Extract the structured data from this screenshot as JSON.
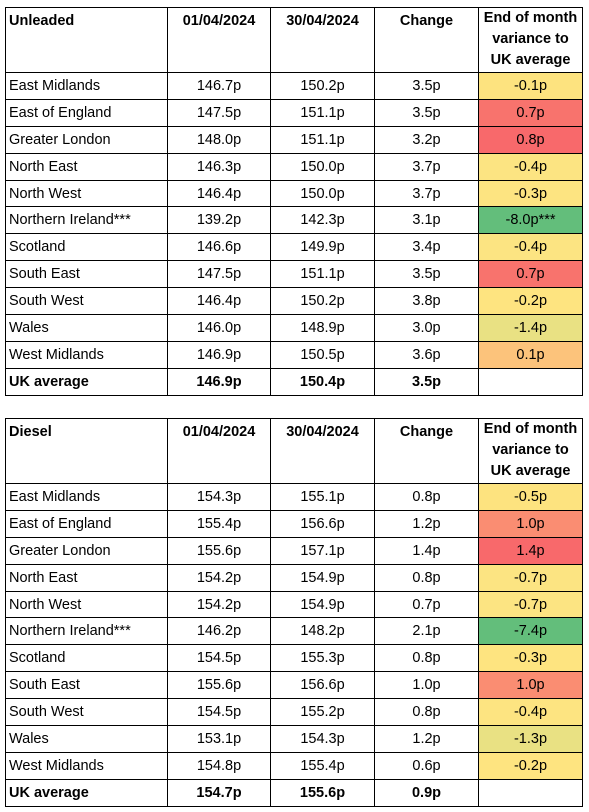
{
  "unleaded": {
    "headers": [
      "Unleaded",
      "01/04/2024",
      "30/04/2024",
      "Change",
      "End of month variance to UK average"
    ],
    "rows": [
      {
        "region": "East Midlands",
        "start": "146.7p",
        "end": "150.2p",
        "change": "3.5p",
        "variance": "-0.1p",
        "color": "#fde37f"
      },
      {
        "region": "East of England",
        "start": "147.5p",
        "end": "151.1p",
        "change": "3.5p",
        "variance": "0.7p",
        "color": "#f8736d"
      },
      {
        "region": "Greater London",
        "start": "148.0p",
        "end": "151.1p",
        "change": "3.2p",
        "variance": "0.8p",
        "color": "#f8696b"
      },
      {
        "region": "North East",
        "start": "146.3p",
        "end": "150.0p",
        "change": "3.7p",
        "variance": "-0.4p",
        "color": "#fce482"
      },
      {
        "region": "North West",
        "start": "146.4p",
        "end": "150.0p",
        "change": "3.7p",
        "variance": "-0.3p",
        "color": "#fde481"
      },
      {
        "region": "Northern Ireland***",
        "start": "139.2p",
        "end": "142.3p",
        "change": "3.1p",
        "variance": "-8.0p***",
        "color": "#63be7b"
      },
      {
        "region": "Scotland",
        "start": "146.6p",
        "end": "149.9p",
        "change": "3.4p",
        "variance": "-0.4p",
        "color": "#fce482"
      },
      {
        "region": "South East",
        "start": "147.5p",
        "end": "151.1p",
        "change": "3.5p",
        "variance": "0.7p",
        "color": "#f8736d"
      },
      {
        "region": "South West",
        "start": "146.4p",
        "end": "150.2p",
        "change": "3.8p",
        "variance": "-0.2p",
        "color": "#fee480"
      },
      {
        "region": "Wales",
        "start": "146.0p",
        "end": "148.9p",
        "change": "3.0p",
        "variance": "-1.4p",
        "color": "#e9e183"
      },
      {
        "region": "West Midlands",
        "start": "146.9p",
        "end": "150.5p",
        "change": "3.6p",
        "variance": "0.1p",
        "color": "#fcc37b"
      }
    ],
    "average": {
      "region": "UK average",
      "start": "146.9p",
      "end": "150.4p",
      "change": "3.5p",
      "variance": ""
    }
  },
  "diesel": {
    "headers": [
      "Diesel",
      "01/04/2024",
      "30/04/2024",
      "Change",
      "End of month variance to UK average"
    ],
    "rows": [
      {
        "region": "East Midlands",
        "start": "154.3p",
        "end": "155.1p",
        "change": "0.8p",
        "variance": "-0.5p",
        "color": "#fde37f"
      },
      {
        "region": "East of England",
        "start": "155.4p",
        "end": "156.6p",
        "change": "1.2p",
        "variance": "1.0p",
        "color": "#fa8d72"
      },
      {
        "region": "Greater London",
        "start": "155.6p",
        "end": "157.1p",
        "change": "1.4p",
        "variance": "1.4p",
        "color": "#f8696b"
      },
      {
        "region": "North East",
        "start": "154.2p",
        "end": "154.9p",
        "change": "0.8p",
        "variance": "-0.7p",
        "color": "#fce482"
      },
      {
        "region": "North West",
        "start": "154.2p",
        "end": "154.9p",
        "change": "0.7p",
        "variance": "-0.7p",
        "color": "#fce482"
      },
      {
        "region": "Northern Ireland***",
        "start": "146.2p",
        "end": "148.2p",
        "change": "2.1p",
        "variance": "-7.4p",
        "color": "#63be7b"
      },
      {
        "region": "Scotland",
        "start": "154.5p",
        "end": "155.3p",
        "change": "0.8p",
        "variance": "-0.3p",
        "color": "#fee480"
      },
      {
        "region": "South East",
        "start": "155.6p",
        "end": "156.6p",
        "change": "1.0p",
        "variance": "1.0p",
        "color": "#fa8d72"
      },
      {
        "region": "South West",
        "start": "154.5p",
        "end": "155.2p",
        "change": "0.8p",
        "variance": "-0.4p",
        "color": "#fde481"
      },
      {
        "region": "Wales",
        "start": "153.1p",
        "end": "154.3p",
        "change": "1.2p",
        "variance": "-1.3p",
        "color": "#e9e183"
      },
      {
        "region": "West Midlands",
        "start": "154.8p",
        "end": "155.4p",
        "change": "0.6p",
        "variance": "-0.2p",
        "color": "#fee480"
      }
    ],
    "average": {
      "region": "UK average",
      "start": "154.7p",
      "end": "155.6p",
      "change": "0.9p",
      "variance": ""
    }
  }
}
